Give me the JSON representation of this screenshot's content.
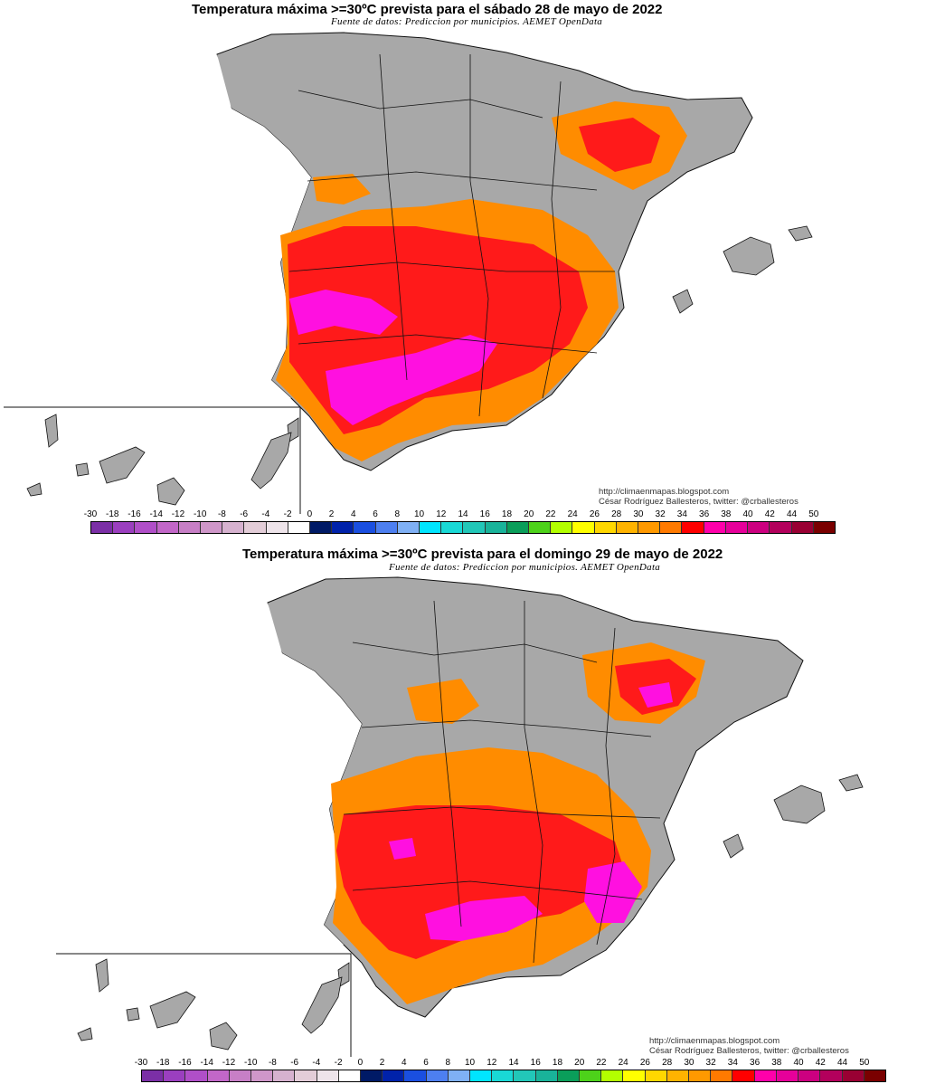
{
  "panels": [
    {
      "title": "Temperatura máxima >=30ºC prevista para el sábado 28 de mayo de 2022",
      "source": "Fuente de datos: Prediccion por municipios. AEMET OpenData",
      "credits": [
        "http://climaenmapas.blogspot.com",
        "César Rodríguez Ballesteros, twitter: @crballesteros"
      ]
    },
    {
      "title": "Temperatura máxima >=30ºC prevista para el domingo 29 de mayo de 2022",
      "source": "Fuente de datos: Prediccion por municipios. AEMET OpenData",
      "credits": [
        "http://climaenmapas.blogspot.com",
        "César Rodríguez Ballesteros, twitter: @crballesteros"
      ]
    }
  ],
  "scale": {
    "labels": [
      "-30",
      "-18",
      "-16",
      "-14",
      "-12",
      "-10",
      "-8",
      "-6",
      "-4",
      "-2",
      "0",
      "2",
      "4",
      "6",
      "8",
      "10",
      "12",
      "14",
      "16",
      "18",
      "20",
      "22",
      "24",
      "26",
      "28",
      "30",
      "32",
      "34",
      "36",
      "38",
      "40",
      "42",
      "44",
      "50"
    ],
    "colors": [
      "#7b2fa6",
      "#9b3fbf",
      "#b04fc8",
      "#c267c8",
      "#c77fc6",
      "#cf97c9",
      "#d6b2cf",
      "#e3cdd8",
      "#eee4ea",
      "#ffffff",
      "#001a66",
      "#0022aa",
      "#1a4fe0",
      "#4d7ff0",
      "#7fb0f5",
      "#00e5ff",
      "#19d9d6",
      "#22c7b8",
      "#19b39a",
      "#0a9e5a",
      "#4dd21a",
      "#b3ff00",
      "#ffff00",
      "#ffd700",
      "#ffb300",
      "#ff9900",
      "#ff7a00",
      "#ff0000",
      "#ff00aa",
      "#e6009a",
      "#cc0080",
      "#b3005c",
      "#990033",
      "#7a0000"
    ]
  },
  "colors": {
    "land": "#a8a8a8",
    "t30": "#ff8c00",
    "t32": "#ff1a1a",
    "t34": "#ff10e0",
    "borders": "#111111"
  }
}
